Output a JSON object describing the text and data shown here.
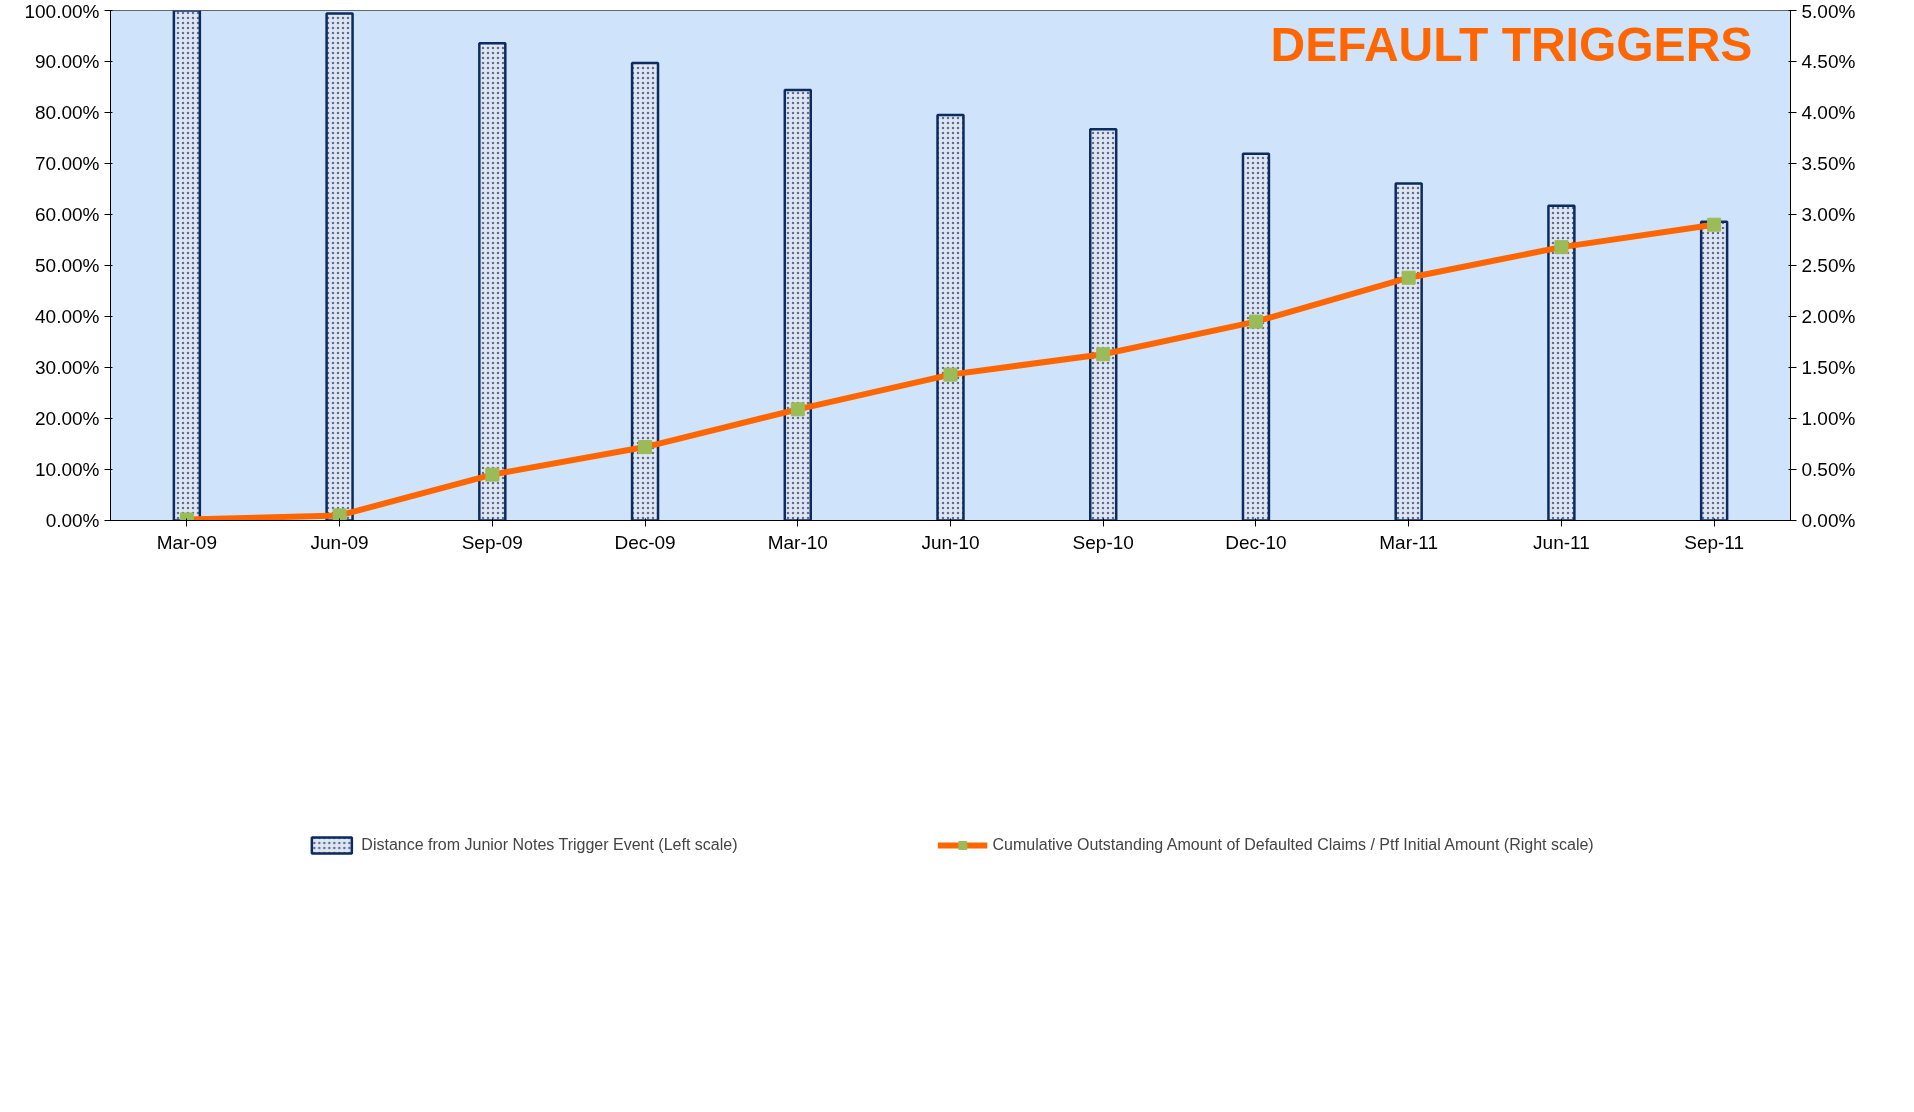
{
  "chart_data": {
    "type": "bar",
    "title": "DEFAULT TRIGGERS",
    "categories": [
      "Mar-09",
      "Jun-09",
      "Sep-09",
      "Dec-09",
      "Mar-10",
      "Jun-10",
      "Sep-10",
      "Dec-10",
      "Mar-11",
      "Jun-11",
      "Sep-11"
    ],
    "series": [
      {
        "name": "Distance from Junior Notes Trigger Event (Left scale)",
        "color": "#dfe6f2",
        "values": [
          100.0,
          99.4,
          93.6,
          89.7,
          84.4,
          79.5,
          76.7,
          71.9,
          66.1,
          61.7,
          58.6
        ]
      },
      {
        "name": "Cumulative Outstanding Amount of Defaulted Claims / Ptf Initial Amount (Right scale)",
        "type": "line",
        "axis": "y2",
        "color": "#ff6600",
        "marker": "square",
        "values": [
          0.01,
          0.05,
          0.45,
          0.72,
          1.09,
          1.43,
          1.63,
          1.95,
          2.38,
          2.68,
          2.9
        ]
      }
    ],
    "ylim": [
      0,
      100
    ],
    "yticks": [
      {
        "value": 0,
        "label": "0.00%"
      },
      {
        "value": 10,
        "label": "10.00%"
      },
      {
        "value": 20,
        "label": "20.00%"
      },
      {
        "value": 30,
        "label": "30.00%"
      },
      {
        "value": 40,
        "label": "40.00%"
      },
      {
        "value": 50,
        "label": "50.00%"
      },
      {
        "value": 60,
        "label": "60.00%"
      },
      {
        "value": 70,
        "label": "70.00%"
      },
      {
        "value": 80,
        "label": "80.00%"
      },
      {
        "value": 90,
        "label": "90.00%"
      },
      {
        "value": 100,
        "label": "100.00%"
      }
    ],
    "y2lim": [
      0,
      5
    ],
    "y2ticks": [
      {
        "value": 0,
        "label": "0.00%"
      },
      {
        "value": 0.5,
        "label": "0.50%"
      },
      {
        "value": 1,
        "label": "1.00%"
      },
      {
        "value": 1.5,
        "label": "1.50%"
      },
      {
        "value": 2,
        "label": "2.00%"
      },
      {
        "value": 2.5,
        "label": "2.50%"
      },
      {
        "value": 3,
        "label": "3.00%"
      },
      {
        "value": 3.5,
        "label": "3.50%"
      },
      {
        "value": 4,
        "label": "4.00%"
      },
      {
        "value": 4.5,
        "label": "4.50%"
      },
      {
        "value": 5,
        "label": "5.00%"
      }
    ],
    "grid": false,
    "legend": "bottom"
  }
}
